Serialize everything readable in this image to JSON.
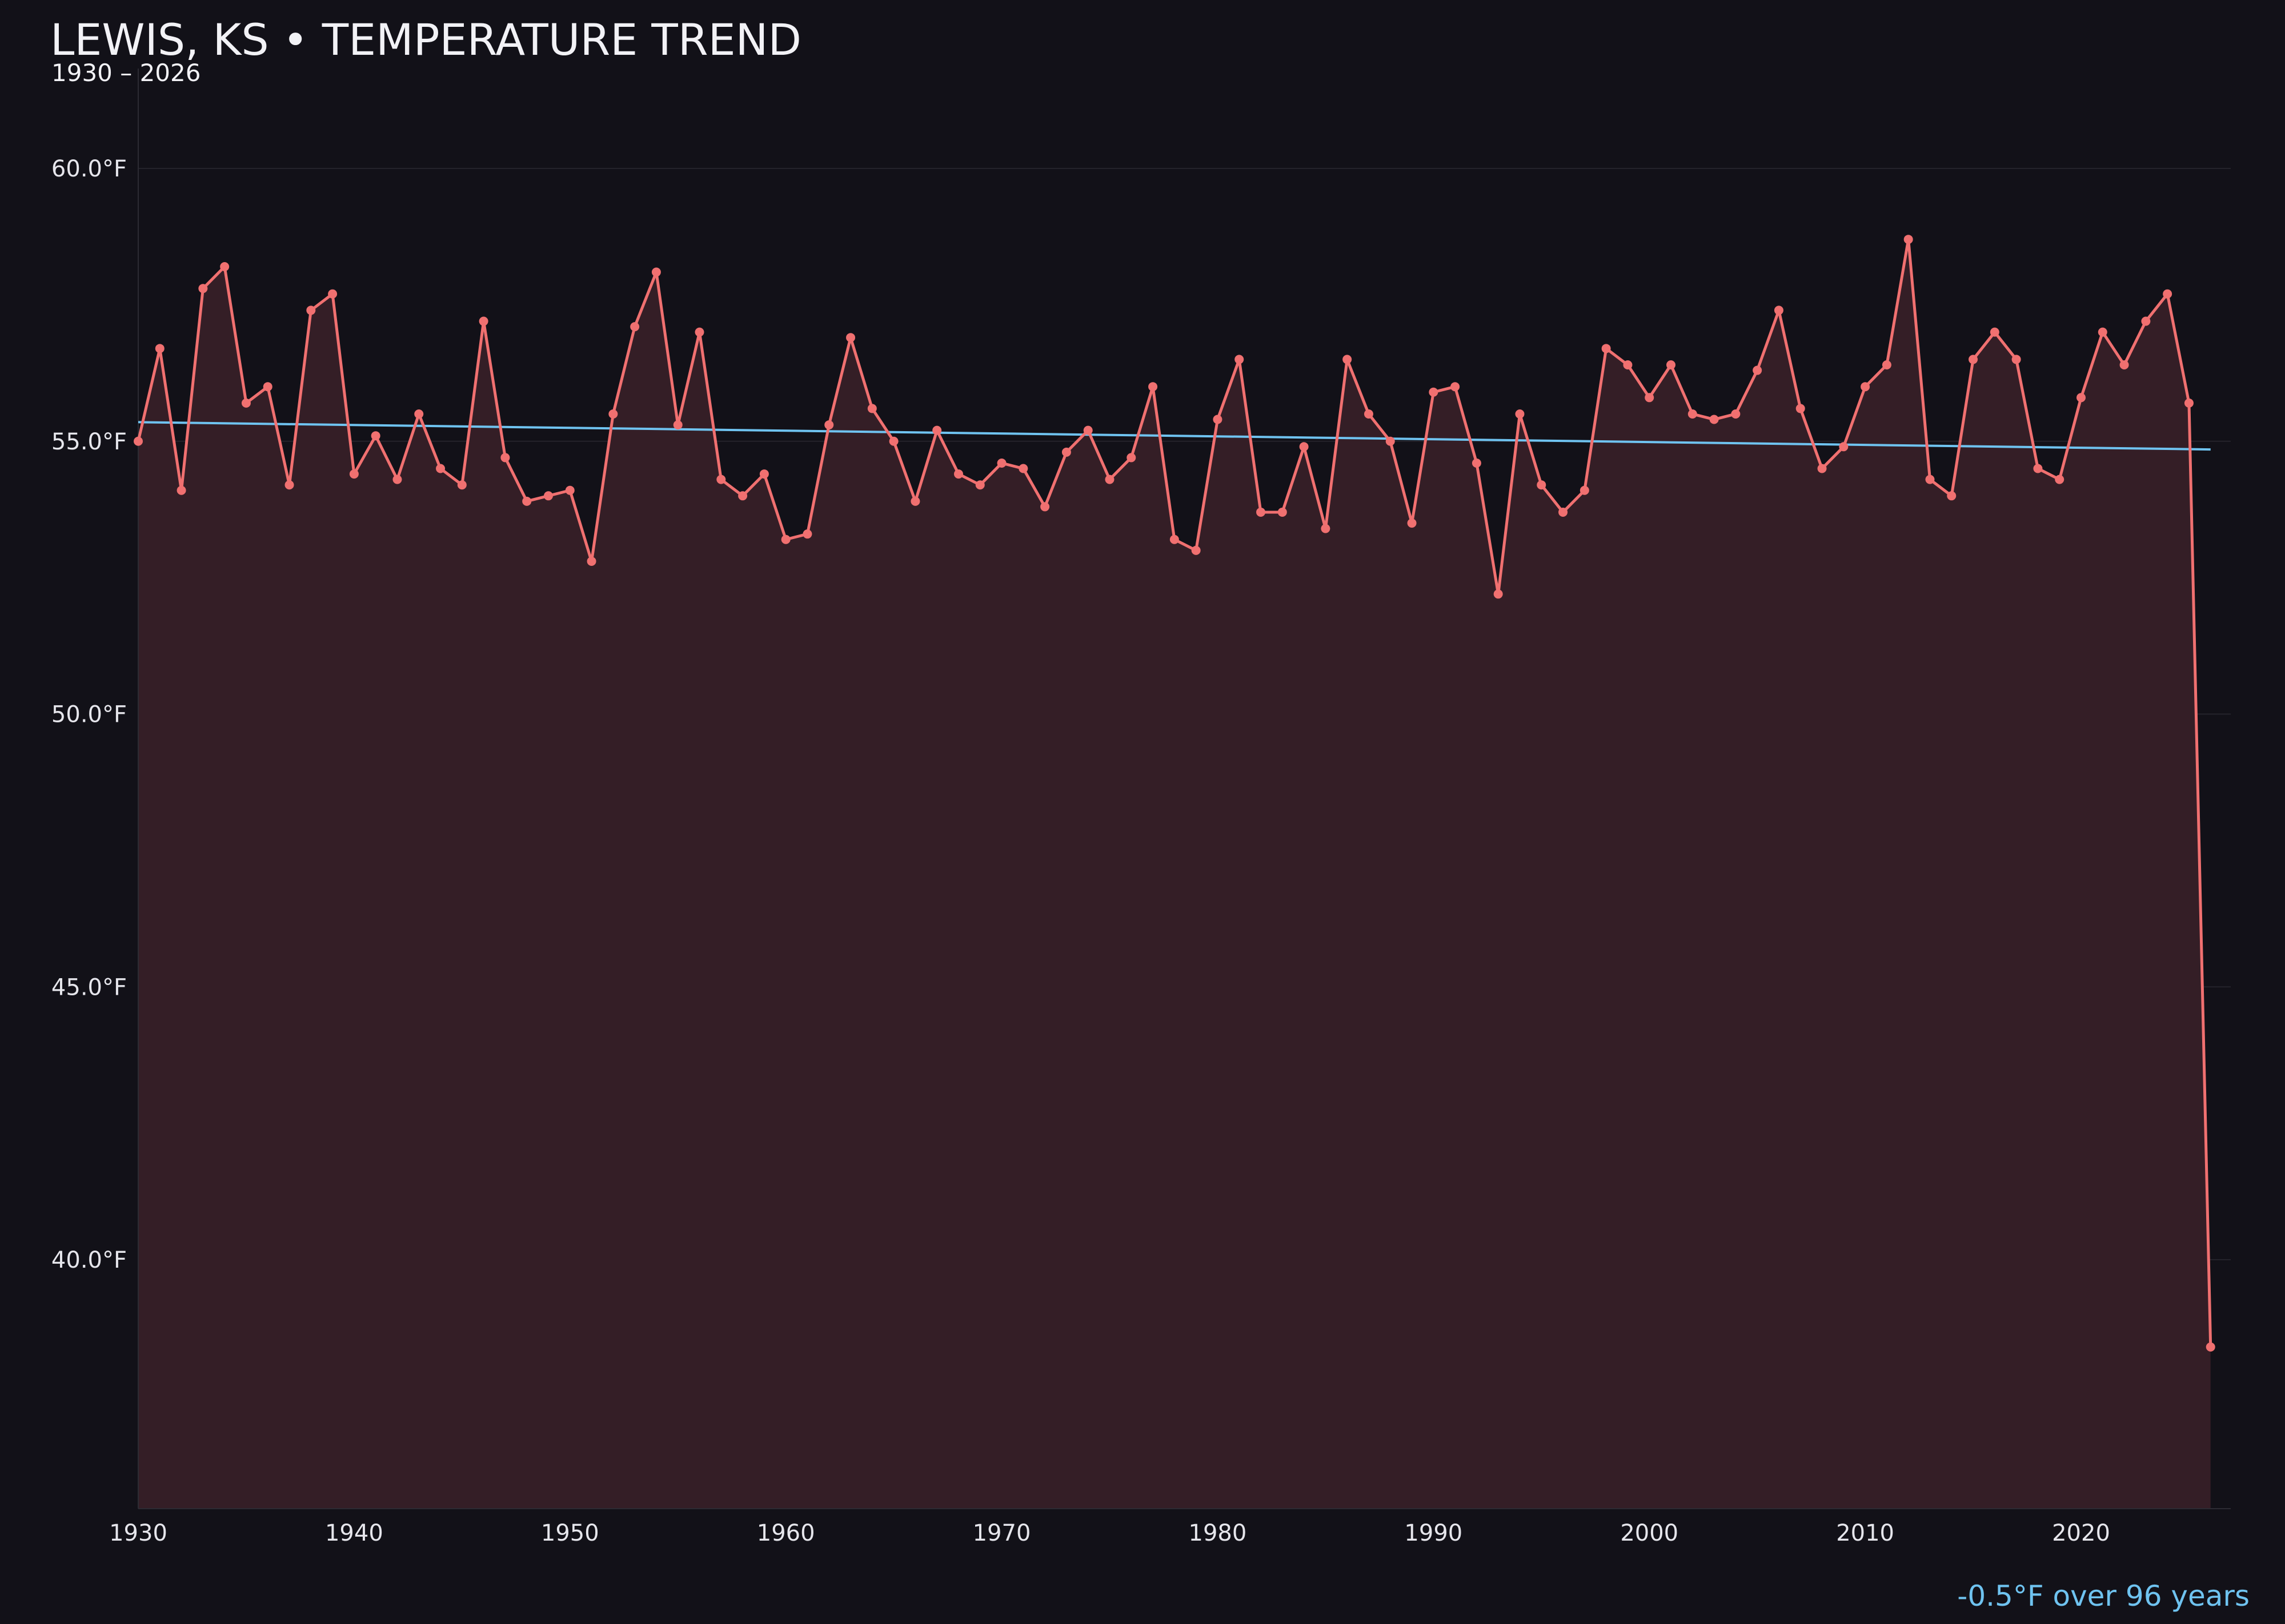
{
  "chart_data": {
    "type": "line",
    "title": "LEWIS, KS • TEMPERATURE TREND",
    "subtitle": "1930 – 2026",
    "xlabel": "",
    "ylabel": "",
    "xlim": [
      1930,
      2027
    ],
    "ylim": [
      35.5,
      62.0
    ],
    "x_ticks": [
      1930,
      1940,
      1950,
      1960,
      1970,
      1980,
      1990,
      2000,
      2010,
      2020
    ],
    "x_tick_labels": [
      "1930",
      "1940",
      "1950",
      "1960",
      "1970",
      "1980",
      "1990",
      "2000",
      "2010",
      "2020"
    ],
    "y_ticks": [
      40.0,
      45.0,
      50.0,
      55.0,
      60.0
    ],
    "y_tick_labels": [
      "40.0°F",
      "45.0°F",
      "50.0°F",
      "55.0°F",
      "60.0°F"
    ],
    "grid": true,
    "series": [
      {
        "color": "#f07070",
        "area_fill": "#341e26",
        "x": [
          1930,
          1931,
          1932,
          1933,
          1934,
          1935,
          1936,
          1937,
          1938,
          1939,
          1940,
          1941,
          1942,
          1943,
          1944,
          1945,
          1946,
          1947,
          1948,
          1949,
          1950,
          1951,
          1952,
          1953,
          1954,
          1955,
          1956,
          1957,
          1958,
          1959,
          1960,
          1961,
          1962,
          1963,
          1964,
          1965,
          1966,
          1967,
          1968,
          1969,
          1970,
          1971,
          1972,
          1973,
          1974,
          1975,
          1976,
          1977,
          1978,
          1979,
          1980,
          1981,
          1982,
          1983,
          1984,
          1985,
          1986,
          1987,
          1988,
          1989,
          1990,
          1991,
          1992,
          1993,
          1994,
          1995,
          1996,
          1997,
          1998,
          1999,
          2000,
          2001,
          2002,
          2003,
          2004,
          2005,
          2006,
          2007,
          2008,
          2009,
          2010,
          2011,
          2012,
          2013,
          2014,
          2015,
          2016,
          2017,
          2018,
          2019,
          2020,
          2021,
          2022,
          2023,
          2024,
          2025,
          2026
        ],
        "values": [
          55.0,
          56.7,
          54.1,
          57.8,
          58.2,
          55.7,
          56.0,
          54.2,
          57.4,
          57.7,
          54.4,
          55.1,
          54.3,
          55.5,
          54.5,
          54.2,
          57.2,
          54.7,
          53.9,
          54.0,
          54.1,
          52.8,
          55.5,
          57.1,
          58.1,
          55.3,
          57.0,
          54.3,
          54.0,
          54.4,
          53.2,
          53.3,
          55.3,
          56.9,
          55.6,
          55.0,
          53.9,
          55.2,
          54.4,
          54.2,
          54.6,
          54.5,
          53.8,
          54.8,
          55.2,
          54.3,
          54.7,
          56.0,
          53.2,
          53.0,
          55.4,
          56.5,
          53.7,
          53.7,
          54.9,
          53.4,
          56.5,
          55.5,
          55.0,
          53.5,
          55.9,
          56.0,
          54.6,
          52.2,
          55.5,
          54.2,
          53.7,
          54.1,
          56.7,
          56.4,
          55.8,
          56.4,
          55.5,
          55.4,
          55.5,
          56.3,
          57.4,
          55.6,
          54.5,
          54.9,
          56.0,
          56.4,
          58.7,
          54.3,
          54.0,
          56.5,
          57.0,
          56.5,
          54.5,
          54.3,
          55.8,
          57.0,
          56.4,
          57.2,
          57.7,
          55.7,
          38.4
        ]
      }
    ],
    "trend_line": {
      "color": "#6fc3f0",
      "x": [
        1930,
        2026
      ],
      "values": [
        55.35,
        54.85
      ]
    },
    "annotation": "-0.5°F over 96 years",
    "annotation_color": "#6fc3f0"
  }
}
